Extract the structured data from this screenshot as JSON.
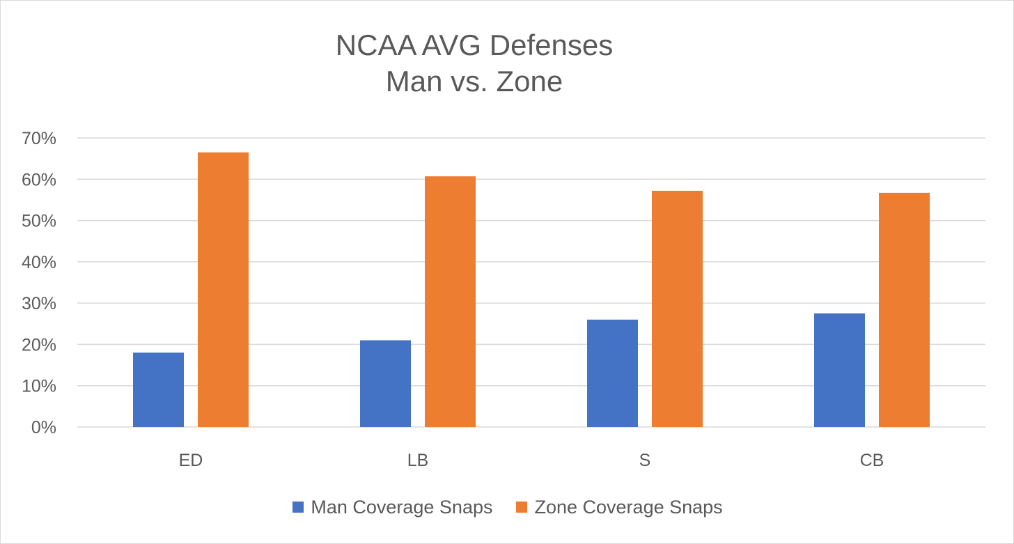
{
  "chart_data": {
    "type": "bar",
    "title": [
      "NCAA AVG Defenses",
      "Man vs. Zone"
    ],
    "categories": [
      "ED",
      "LB",
      "S",
      "CB"
    ],
    "series": [
      {
        "name": "Man Coverage Snaps",
        "color": "#4472c4",
        "values": [
          0.18,
          0.21,
          0.26,
          0.275
        ]
      },
      {
        "name": "Zone Coverage Snaps",
        "color": "#ed7d31",
        "values": [
          0.665,
          0.607,
          0.572,
          0.567
        ]
      }
    ],
    "ylim": [
      0,
      0.7
    ],
    "yticks": [
      "0%",
      "10%",
      "20%",
      "30%",
      "40%",
      "50%",
      "60%",
      "70%"
    ],
    "grid": true,
    "legend_position": "bottom"
  }
}
